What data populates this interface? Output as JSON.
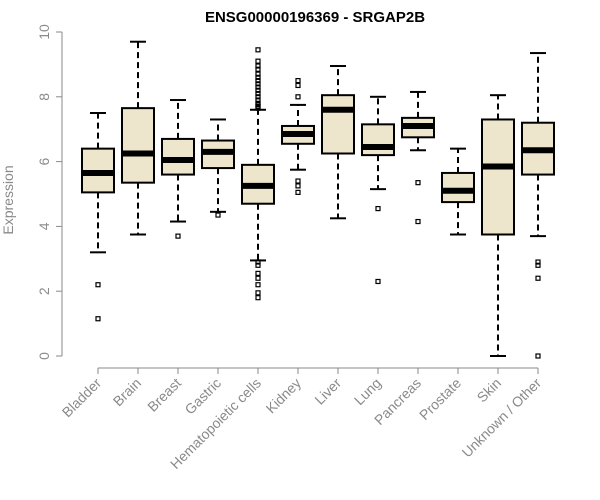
{
  "chart_data": {
    "type": "box",
    "title": "ENSG00000196369 - SRGAP2B",
    "xlabel": "",
    "ylabel": "Expression",
    "ylim": [
      0,
      10
    ],
    "yticks": [
      0,
      2,
      4,
      6,
      8,
      10
    ],
    "grid": false,
    "legend": "none",
    "colors": {
      "box_fill": "#ede6cc",
      "stroke": "#000000",
      "axis_text": "#8a8a8a"
    },
    "categories": [
      "Bladder",
      "Brain",
      "Breast",
      "Gastric",
      "Hematopoietic cells",
      "Kidney",
      "Liver",
      "Lung",
      "Pancreas",
      "Prostate",
      "Skin",
      "Unknown / Other"
    ],
    "boxes": [
      {
        "category": "Bladder",
        "whisker_low": 3.2,
        "q1": 5.05,
        "median": 5.65,
        "q3": 6.4,
        "whisker_high": 7.5,
        "outliers": [
          2.2,
          1.15
        ]
      },
      {
        "category": "Brain",
        "whisker_low": 3.75,
        "q1": 5.35,
        "median": 6.25,
        "q3": 7.65,
        "whisker_high": 9.7,
        "outliers": []
      },
      {
        "category": "Breast",
        "whisker_low": 4.15,
        "q1": 5.6,
        "median": 6.05,
        "q3": 6.7,
        "whisker_high": 7.9,
        "outliers": [
          3.7
        ]
      },
      {
        "category": "Gastric",
        "whisker_low": 4.45,
        "q1": 5.8,
        "median": 6.3,
        "q3": 6.65,
        "whisker_high": 7.3,
        "outliers": [
          4.35
        ]
      },
      {
        "category": "Hematopoietic cells",
        "whisker_low": 2.95,
        "q1": 4.7,
        "median": 5.25,
        "q3": 5.9,
        "whisker_high": 7.6,
        "outliers": [
          9.45,
          9.1,
          8.95,
          8.85,
          8.7,
          8.6,
          8.5,
          8.4,
          8.3,
          8.2,
          8.1,
          8.0,
          7.9,
          7.8,
          7.75,
          7.7,
          7.65,
          2.9,
          2.8,
          2.55,
          2.4,
          2.2,
          1.95,
          1.8
        ]
      },
      {
        "category": "Kidney",
        "whisker_low": 5.75,
        "q1": 6.55,
        "median": 6.85,
        "q3": 7.1,
        "whisker_high": 7.75,
        "outliers": [
          8.5,
          8.35,
          8.0,
          5.4,
          5.25,
          5.05
        ]
      },
      {
        "category": "Liver",
        "whisker_low": 4.25,
        "q1": 6.25,
        "median": 7.6,
        "q3": 8.05,
        "whisker_high": 8.95,
        "outliers": []
      },
      {
        "category": "Lung",
        "whisker_low": 5.15,
        "q1": 6.2,
        "median": 6.45,
        "q3": 7.15,
        "whisker_high": 8.0,
        "outliers": [
          4.55,
          2.3
        ]
      },
      {
        "category": "Pancreas",
        "whisker_low": 6.35,
        "q1": 6.75,
        "median": 7.1,
        "q3": 7.35,
        "whisker_high": 8.15,
        "outliers": [
          5.35,
          4.15
        ]
      },
      {
        "category": "Prostate",
        "whisker_low": 3.75,
        "q1": 4.75,
        "median": 5.1,
        "q3": 5.65,
        "whisker_high": 6.4,
        "outliers": []
      },
      {
        "category": "Skin",
        "whisker_low": 0.0,
        "q1": 3.75,
        "median": 5.85,
        "q3": 7.3,
        "whisker_high": 8.05,
        "outliers": []
      },
      {
        "category": "Unknown / Other",
        "whisker_low": 3.7,
        "q1": 5.6,
        "median": 6.35,
        "q3": 7.2,
        "whisker_high": 9.35,
        "outliers": [
          2.9,
          2.8,
          2.4,
          0.0
        ]
      }
    ]
  }
}
